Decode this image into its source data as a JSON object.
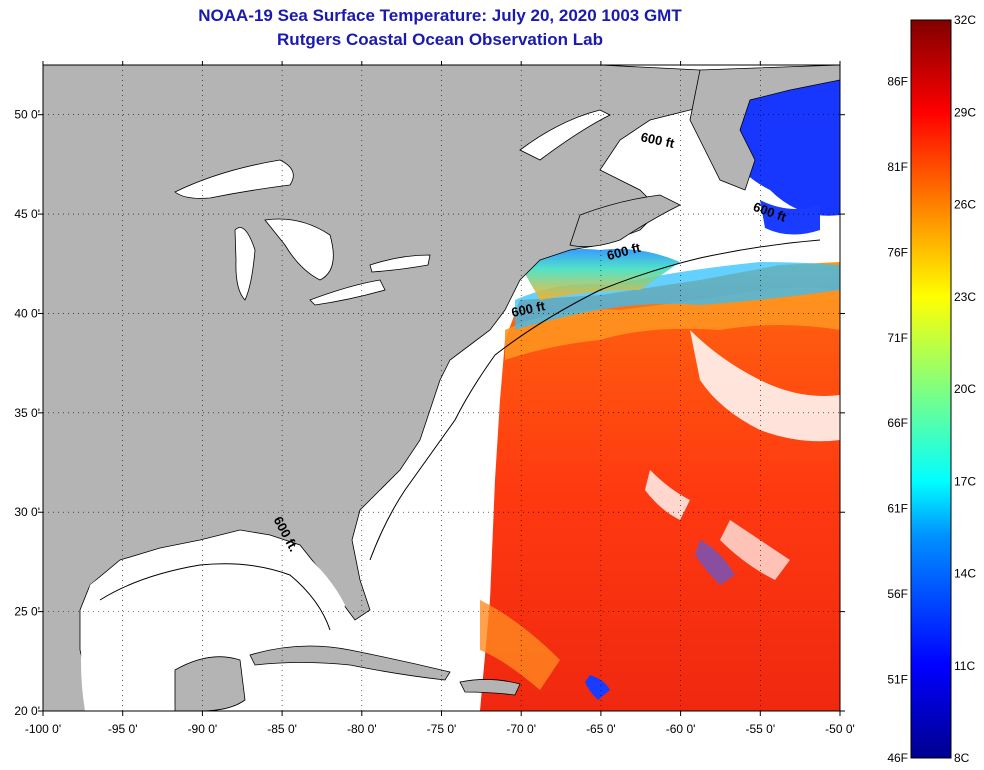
{
  "title": {
    "line1": "NOAA-19 Sea Surface Temperature:  July 20, 2020 1003 GMT",
    "line2": "Rutgers Coastal Ocean Observation Lab"
  },
  "map": {
    "lon_range": [
      -100,
      -50
    ],
    "lat_range": [
      20,
      52.5
    ],
    "lon_ticks": [
      {
        "value": -100,
        "label": "-100 0'"
      },
      {
        "value": -95,
        "label": "-95 0'"
      },
      {
        "value": -90,
        "label": "-90 0'"
      },
      {
        "value": -85,
        "label": "-85 0'"
      },
      {
        "value": -80,
        "label": "-80 0'"
      },
      {
        "value": -75,
        "label": "-75 0'"
      },
      {
        "value": -70,
        "label": "-70 0'"
      },
      {
        "value": -65,
        "label": "-65 0'"
      },
      {
        "value": -60,
        "label": "-60 0'"
      },
      {
        "value": -55,
        "label": "-55 0'"
      },
      {
        "value": -50,
        "label": "-50 0'"
      }
    ],
    "lat_ticks": [
      {
        "value": 20,
        "label": "20 0'"
      },
      {
        "value": 25,
        "label": "25 0'"
      },
      {
        "value": 30,
        "label": "30 0'"
      },
      {
        "value": 35,
        "label": "35 0'"
      },
      {
        "value": 40,
        "label": "40 0'"
      },
      {
        "value": 45,
        "label": "45 0'"
      },
      {
        "value": 50,
        "label": "50 0'"
      }
    ],
    "grid": "dotted",
    "land_color": "#b4b4b4",
    "water_nodata_color": "#ffffff",
    "contour_labels": [
      {
        "text": "600 ft",
        "lon": -61.5,
        "lat": 48.5,
        "angle": 12
      },
      {
        "text": "600 ft",
        "lon": -54.5,
        "lat": 44.9,
        "angle": 20
      },
      {
        "text": "600 ft",
        "lon": -63.5,
        "lat": 42.9,
        "angle": -15
      },
      {
        "text": "600 ft",
        "lon": -69.5,
        "lat": 40.0,
        "angle": -12
      },
      {
        "text": "600 ft.",
        "lon": -85.0,
        "lat": 28.8,
        "angle": 62
      }
    ]
  },
  "colorbar": {
    "celsius_labels": [
      {
        "value": 32,
        "label": "32C"
      },
      {
        "value": 29,
        "label": "29C"
      },
      {
        "value": 26,
        "label": "26C"
      },
      {
        "value": 23,
        "label": "23C"
      },
      {
        "value": 20,
        "label": "20C"
      },
      {
        "value": 17,
        "label": "17C"
      },
      {
        "value": 14,
        "label": "14C"
      },
      {
        "value": 11,
        "label": "11C"
      },
      {
        "value": 8,
        "label": "8C"
      }
    ],
    "fahrenheit_labels": [
      {
        "value": 86,
        "label": "86F"
      },
      {
        "value": 81,
        "label": "81F"
      },
      {
        "value": 76,
        "label": "76F"
      },
      {
        "value": 71,
        "label": "71F"
      },
      {
        "value": 66,
        "label": "66F"
      },
      {
        "value": 61,
        "label": "61F"
      },
      {
        "value": 56,
        "label": "56F"
      },
      {
        "value": 51,
        "label": "51F"
      },
      {
        "value": 46,
        "label": "46F"
      }
    ],
    "range_c": [
      8,
      32
    ],
    "colors": [
      "#00008f",
      "#0000ff",
      "#0080ff",
      "#00ffff",
      "#80ff80",
      "#ffff00",
      "#ff8000",
      "#ff0000",
      "#800000"
    ]
  }
}
